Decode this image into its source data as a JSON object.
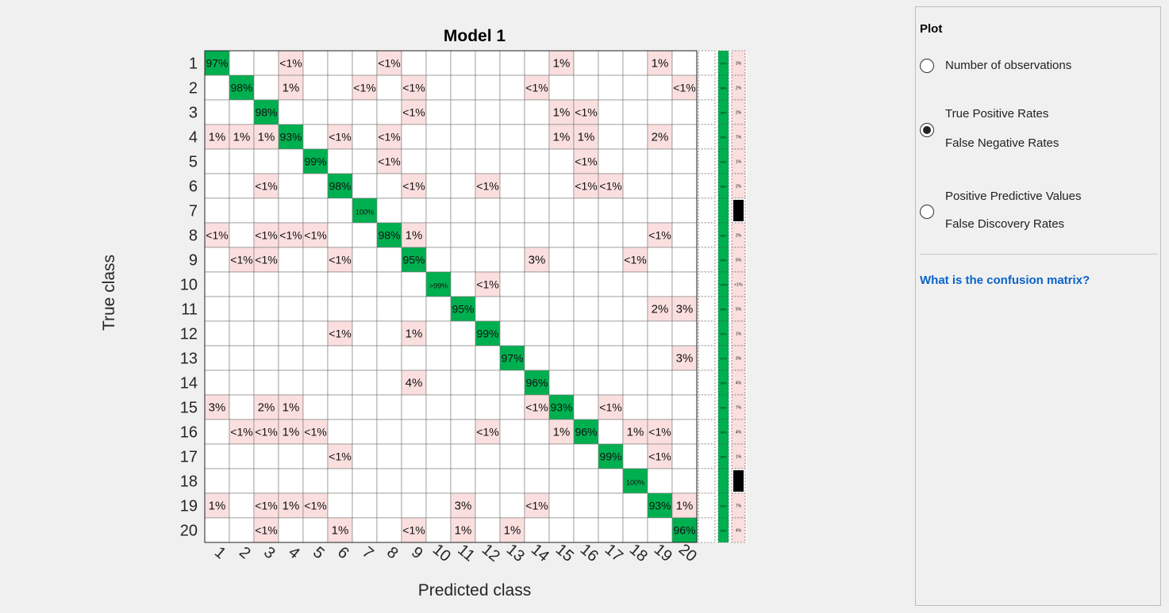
{
  "plot": {
    "title": "Model 1",
    "xlabel": "Predicted class",
    "ylabel": "True class"
  },
  "panel": {
    "title": "Plot",
    "options": [
      {
        "label": "Number of observations",
        "checked": false
      },
      {
        "label": "True Positive Rates",
        "label2": "False Negative Rates",
        "checked": true
      },
      {
        "label": "Positive Predictive Values",
        "label2": "False Discovery Rates",
        "checked": false
      }
    ],
    "help_link": "What is the confusion matrix?"
  },
  "colors": {
    "diagonal": "#00b050",
    "offdiagonal": "#fbdfdf",
    "black_bar": "#000000",
    "link": "#0a64c8"
  },
  "chart_data": {
    "type": "heatmap",
    "row_labels": [
      "1",
      "2",
      "3",
      "4",
      "5",
      "6",
      "7",
      "8",
      "9",
      "10",
      "11",
      "12",
      "13",
      "14",
      "15",
      "16",
      "17",
      "18",
      "19",
      "20"
    ],
    "col_labels": [
      "1",
      "2",
      "3",
      "4",
      "5",
      "6",
      "7",
      "8",
      "9",
      "10",
      "11",
      "12",
      "13",
      "14",
      "15",
      "16",
      "17",
      "18",
      "19",
      "20"
    ],
    "cells": [
      [
        "97%",
        "",
        "",
        "<1%",
        "",
        "",
        "",
        "<1%",
        "",
        "",
        "",
        "",
        "",
        "",
        "1%",
        "",
        "",
        "",
        "1%",
        ""
      ],
      [
        "",
        "98%",
        "",
        "1%",
        "",
        "",
        "<1%",
        "",
        "<1%",
        "",
        "",
        "",
        "",
        "<1%",
        "",
        "",
        "",
        "",
        "",
        "<1%"
      ],
      [
        "",
        "",
        "98%",
        "",
        "",
        "",
        "",
        "",
        "<1%",
        "",
        "",
        "",
        "",
        "",
        "1%",
        "<1%",
        "",
        "",
        "",
        ""
      ],
      [
        "1%",
        "1%",
        "1%",
        "93%",
        "",
        "<1%",
        "",
        "<1%",
        "",
        "",
        "",
        "",
        "",
        "",
        "1%",
        "1%",
        "",
        "",
        "2%",
        ""
      ],
      [
        "",
        "",
        "",
        "",
        "99%",
        "",
        "",
        "<1%",
        "",
        "",
        "",
        "",
        "",
        "",
        "",
        "<1%",
        "",
        "",
        "",
        ""
      ],
      [
        "",
        "",
        "<1%",
        "",
        "",
        "98%",
        "",
        "",
        "<1%",
        "",
        "",
        "<1%",
        "",
        "",
        "",
        "<1%",
        "<1%",
        "",
        "",
        ""
      ],
      [
        "",
        "",
        "",
        "",
        "",
        "",
        "100%",
        "",
        "",
        "",
        "",
        "",
        "",
        "",
        "",
        "",
        "",
        "",
        "",
        ""
      ],
      [
        "<1%",
        "",
        "<1%",
        "<1%",
        "<1%",
        "",
        "",
        "98%",
        "1%",
        "",
        "",
        "",
        "",
        "",
        "",
        "",
        "",
        "",
        "<1%",
        ""
      ],
      [
        "",
        "<1%",
        "<1%",
        "",
        "",
        "<1%",
        "",
        "",
        "95%",
        "",
        "",
        "",
        "",
        "3%",
        "",
        "",
        "",
        "<1%",
        "",
        ""
      ],
      [
        "",
        "",
        "",
        "",
        "",
        "",
        "",
        "",
        "",
        ">99%",
        "",
        "<1%",
        "",
        "",
        "",
        "",
        "",
        "",
        "",
        ""
      ],
      [
        "",
        "",
        "",
        "",
        "",
        "",
        "",
        "",
        "",
        "",
        "95%",
        "",
        "",
        "",
        "",
        "",
        "",
        "",
        "2%",
        "3%"
      ],
      [
        "",
        "",
        "",
        "",
        "",
        "<1%",
        "",
        "",
        "1%",
        "",
        "",
        "99%",
        "",
        "",
        "",
        "",
        "",
        "",
        "",
        ""
      ],
      [
        "",
        "",
        "",
        "",
        "",
        "",
        "",
        "",
        "",
        "",
        "",
        "",
        "97%",
        "",
        "",
        "",
        "",
        "",
        "",
        "3%"
      ],
      [
        "",
        "",
        "",
        "",
        "",
        "",
        "",
        "",
        "4%",
        "",
        "",
        "",
        "",
        "96%",
        "",
        "",
        "",
        "",
        "",
        ""
      ],
      [
        "3%",
        "",
        "2%",
        "1%",
        "",
        "",
        "",
        "",
        "",
        "",
        "",
        "",
        "",
        "<1%",
        "93%",
        "",
        "<1%",
        "",
        "",
        ""
      ],
      [
        "",
        "<1%",
        "<1%",
        "1%",
        "<1%",
        "",
        "",
        "",
        "",
        "",
        "",
        "<1%",
        "",
        "",
        "1%",
        "96%",
        "",
        "1%",
        "<1%",
        ""
      ],
      [
        "",
        "",
        "",
        "",
        "",
        "<1%",
        "",
        "",
        "",
        "",
        "",
        "",
        "",
        "",
        "",
        "",
        "99%",
        "",
        "<1%",
        ""
      ],
      [
        "",
        "",
        "",
        "",
        "",
        "",
        "",
        "",
        "",
        "",
        "",
        "",
        "",
        "",
        "",
        "",
        "",
        "100%",
        "",
        ""
      ],
      [
        "1%",
        "",
        "<1%",
        "1%",
        "<1%",
        "",
        "",
        "",
        "",
        "",
        "3%",
        "",
        "",
        "<1%",
        "",
        "",
        "",
        "",
        "93%",
        "1%"
      ],
      [
        "",
        "",
        "<1%",
        "",
        "",
        "1%",
        "",
        "",
        "<1%",
        "",
        "1%",
        "",
        "1%",
        "",
        "",
        "",
        "",
        "",
        "",
        "96%"
      ]
    ],
    "tpr": [
      "97%",
      "98%",
      "98%",
      "93%",
      "99%",
      "98%",
      "",
      "98%",
      "95%",
      ">99%",
      "95%",
      "99%",
      "97%",
      "96%",
      "93%",
      "96%",
      "99%",
      "",
      "93%",
      "96%"
    ],
    "fnr": [
      "3%",
      "2%",
      "2%",
      "7%",
      "1%",
      "2%",
      "",
      "2%",
      "5%",
      "<1%",
      "5%",
      "1%",
      "3%",
      "4%",
      "7%",
      "4%",
      "1%",
      "",
      "7%",
      "4%"
    ],
    "fnr_black_rows": [
      7,
      18
    ]
  }
}
